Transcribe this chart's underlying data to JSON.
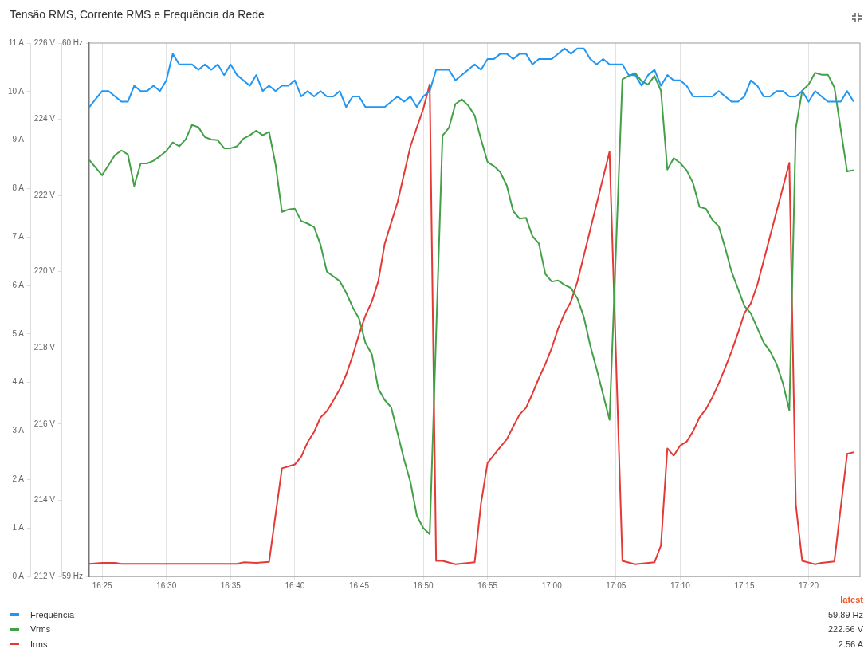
{
  "chart_data": {
    "type": "line",
    "title": "Tensão RMS, Corrente RMS e Frequência da Rede",
    "xlim": [
      16.4,
      17.4
    ],
    "xticks": [
      {
        "value": 16.4167,
        "label": "16:25"
      },
      {
        "value": 16.5,
        "label": "16:30"
      },
      {
        "value": 16.5833,
        "label": "16:35"
      },
      {
        "value": 16.6667,
        "label": "16:40"
      },
      {
        "value": 16.75,
        "label": "16:45"
      },
      {
        "value": 16.8333,
        "label": "16:50"
      },
      {
        "value": 16.9167,
        "label": "16:55"
      },
      {
        "value": 17.0,
        "label": "17:00"
      },
      {
        "value": 17.0833,
        "label": "17:05"
      },
      {
        "value": 17.1667,
        "label": "17:10"
      },
      {
        "value": 17.25,
        "label": "17:15"
      },
      {
        "value": 17.3333,
        "label": "17:20"
      }
    ],
    "ylim": [
      0,
      11
    ],
    "yticks": [
      {
        "value": 0,
        "label": "0 A"
      },
      {
        "value": 1,
        "label": "1 A"
      },
      {
        "value": 2,
        "label": "2 A"
      },
      {
        "value": 3,
        "label": "3 A"
      },
      {
        "value": 4,
        "label": "4 A"
      },
      {
        "value": 5,
        "label": "5 A"
      },
      {
        "value": 6,
        "label": "6 A"
      },
      {
        "value": 7,
        "label": "7 A"
      },
      {
        "value": 8,
        "label": "8 A"
      },
      {
        "value": 9,
        "label": "9 A"
      },
      {
        "value": 10,
        "label": "10 A"
      },
      {
        "value": 11,
        "label": "11 A"
      }
    ],
    "y2lim": [
      212,
      226
    ],
    "y2ticks": [
      {
        "value": 212,
        "label": "212 V"
      },
      {
        "value": 214,
        "label": "214 V"
      },
      {
        "value": 216,
        "label": "216 V"
      },
      {
        "value": 218,
        "label": "218 V"
      },
      {
        "value": 220,
        "label": "220 V"
      },
      {
        "value": 222,
        "label": "222 V"
      },
      {
        "value": 224,
        "label": "224 V"
      },
      {
        "value": 226,
        "label": "226 V"
      }
    ],
    "y3lim": [
      59,
      60
    ],
    "y3ticks": [
      {
        "value": 59,
        "label": "59 Hz"
      },
      {
        "value": 60,
        "label": "60 Hz"
      }
    ],
    "grid": "x",
    "legend": "bottom",
    "annotations": [
      "latest",
      "59.89 Hz",
      "222.66 V",
      "2.56 A"
    ],
    "series": [
      {
        "name": "Frequência",
        "color": "#2196f3",
        "axis": "y3",
        "x": [
          16.4,
          16.4167,
          16.425,
          16.4417,
          16.45,
          16.4583,
          16.4667,
          16.475,
          16.4833,
          16.4917,
          16.5,
          16.5083,
          16.5167,
          16.5333,
          16.5417,
          16.55,
          16.5583,
          16.5667,
          16.575,
          16.5833,
          16.5917,
          16.6083,
          16.6167,
          16.625,
          16.6333,
          16.6417,
          16.65,
          16.6583,
          16.6667,
          16.675,
          16.6833,
          16.6917,
          16.7,
          16.7083,
          16.7167,
          16.725,
          16.7333,
          16.7417,
          16.75,
          16.7583,
          16.7833,
          16.8,
          16.8083,
          16.8167,
          16.825,
          16.8333,
          16.8417,
          16.85,
          16.8667,
          16.875,
          16.9,
          16.9083,
          16.9167,
          16.925,
          16.9333,
          16.9417,
          16.95,
          16.9583,
          16.9667,
          16.975,
          16.9833,
          17.0,
          17.0167,
          17.025,
          17.0333,
          17.0417,
          17.05,
          17.0583,
          17.0667,
          17.075,
          17.0917,
          17.1,
          17.1083,
          17.1167,
          17.125,
          17.1333,
          17.1417,
          17.15,
          17.1583,
          17.1667,
          17.175,
          17.1833,
          17.2083,
          17.2167,
          17.2333,
          17.2417,
          17.25,
          17.2583,
          17.2667,
          17.275,
          17.2833,
          17.2917,
          17.3,
          17.3083,
          17.3167,
          17.325,
          17.3333,
          17.3417,
          17.3583,
          17.375,
          17.3833,
          17.3917
        ],
        "values": [
          59.88,
          59.91,
          59.91,
          59.89,
          59.89,
          59.92,
          59.91,
          59.91,
          59.92,
          59.91,
          59.93,
          59.98,
          59.96,
          59.96,
          59.95,
          59.96,
          59.95,
          59.96,
          59.94,
          59.96,
          59.94,
          59.92,
          59.94,
          59.91,
          59.92,
          59.91,
          59.92,
          59.92,
          59.93,
          59.9,
          59.91,
          59.9,
          59.91,
          59.9,
          59.9,
          59.91,
          59.88,
          59.9,
          59.9,
          59.88,
          59.88,
          59.9,
          59.89,
          59.9,
          59.88,
          59.9,
          59.91,
          59.95,
          59.95,
          59.93,
          59.96,
          59.95,
          59.97,
          59.97,
          59.98,
          59.98,
          59.97,
          59.98,
          59.98,
          59.96,
          59.97,
          59.97,
          59.99,
          59.98,
          59.99,
          59.99,
          59.97,
          59.96,
          59.97,
          59.96,
          59.96,
          59.94,
          59.94,
          59.92,
          59.94,
          59.95,
          59.92,
          59.94,
          59.93,
          59.93,
          59.92,
          59.9,
          59.9,
          59.91,
          59.89,
          59.89,
          59.9,
          59.93,
          59.92,
          59.9,
          59.9,
          59.91,
          59.91,
          59.9,
          59.9,
          59.91,
          59.89,
          59.91,
          59.89,
          59.89,
          59.91,
          59.89
        ]
      },
      {
        "name": "Vrms",
        "color": "#43a047",
        "axis": "y2",
        "x": [
          16.4,
          16.4167,
          16.4333,
          16.4417,
          16.45,
          16.4583,
          16.4667,
          16.475,
          16.4833,
          16.4917,
          16.5,
          16.5083,
          16.5167,
          16.525,
          16.5333,
          16.5417,
          16.55,
          16.5583,
          16.5667,
          16.575,
          16.5833,
          16.5917,
          16.6,
          16.6083,
          16.6167,
          16.625,
          16.6333,
          16.6417,
          16.65,
          16.6583,
          16.6667,
          16.675,
          16.6833,
          16.6917,
          16.7,
          16.7083,
          16.725,
          16.7333,
          16.7417,
          16.75,
          16.7583,
          16.7667,
          16.775,
          16.7833,
          16.7917,
          16.8,
          16.8083,
          16.8167,
          16.825,
          16.8333,
          16.8417,
          16.8583,
          16.8667,
          16.875,
          16.8833,
          16.8917,
          16.9,
          16.9083,
          16.9167,
          16.925,
          16.9333,
          16.9417,
          16.95,
          16.9583,
          16.9667,
          16.975,
          16.9833,
          16.9917,
          17.0,
          17.0083,
          17.0167,
          17.025,
          17.0333,
          17.0417,
          17.05,
          17.0583,
          17.0667,
          17.075,
          17.0917,
          17.1,
          17.1083,
          17.1167,
          17.125,
          17.1333,
          17.1417,
          17.15,
          17.1583,
          17.1667,
          17.175,
          17.1833,
          17.1917,
          17.2,
          17.2083,
          17.2167,
          17.225,
          17.2333,
          17.25,
          17.2583,
          17.275,
          17.2833,
          17.2917,
          17.3,
          17.3083,
          17.3167,
          17.325,
          17.3333,
          17.3417,
          17.35,
          17.3583,
          17.3667,
          17.3833,
          17.3917
        ],
        "values": [
          222.93,
          222.53,
          223.06,
          223.18,
          223.08,
          222.25,
          222.84,
          222.84,
          222.91,
          223.03,
          223.17,
          223.39,
          223.29,
          223.47,
          223.85,
          223.79,
          223.53,
          223.47,
          223.45,
          223.24,
          223.24,
          223.29,
          223.49,
          223.58,
          223.7,
          223.58,
          223.67,
          222.81,
          221.57,
          221.63,
          221.65,
          221.33,
          221.26,
          221.17,
          220.71,
          220.0,
          219.75,
          219.45,
          219.07,
          218.77,
          218.13,
          217.83,
          216.93,
          216.63,
          216.44,
          215.76,
          215.08,
          214.48,
          213.59,
          213.27,
          213.11,
          223.57,
          223.78,
          224.4,
          224.52,
          224.36,
          224.1,
          223.47,
          222.88,
          222.77,
          222.61,
          222.26,
          221.59,
          221.39,
          221.41,
          220.93,
          220.74,
          219.94,
          219.74,
          219.77,
          219.65,
          219.57,
          219.3,
          218.81,
          218.06,
          217.44,
          216.77,
          216.11,
          225.05,
          225.14,
          225.21,
          225.0,
          224.91,
          225.14,
          224.75,
          222.68,
          222.98,
          222.85,
          222.66,
          222.33,
          221.7,
          221.65,
          221.36,
          221.19,
          220.63,
          220.0,
          219.1,
          218.91,
          218.14,
          217.91,
          217.58,
          217.07,
          216.36,
          223.77,
          224.75,
          224.91,
          225.22,
          225.17,
          225.17,
          224.84,
          222.63,
          222.66
        ]
      },
      {
        "name": "Irms",
        "color": "#e53935",
        "axis": "y",
        "x": [
          16.4,
          16.4167,
          16.4333,
          16.4417,
          16.5917,
          16.6,
          16.6167,
          16.6333,
          16.65,
          16.6583,
          16.6667,
          16.675,
          16.6833,
          16.6917,
          16.7,
          16.7083,
          16.7167,
          16.725,
          16.7333,
          16.7417,
          16.75,
          16.7583,
          16.7667,
          16.775,
          16.7833,
          16.8,
          16.8167,
          16.825,
          16.8333,
          16.8417,
          16.85,
          16.8583,
          16.875,
          16.9,
          16.9083,
          16.9167,
          16.9333,
          16.9417,
          16.95,
          16.9583,
          16.9667,
          16.975,
          16.9833,
          16.9917,
          17.0,
          17.0083,
          17.0167,
          17.025,
          17.0333,
          17.075,
          17.0917,
          17.1083,
          17.1333,
          17.1417,
          17.15,
          17.1583,
          17.1667,
          17.175,
          17.1833,
          17.1917,
          17.2,
          17.2083,
          17.2167,
          17.225,
          17.2333,
          17.2417,
          17.25,
          17.2583,
          17.2667,
          17.3083,
          17.3167,
          17.325,
          17.3417,
          17.35,
          17.3667,
          17.3833,
          17.3917
        ],
        "values": [
          0.26,
          0.28,
          0.28,
          0.26,
          0.26,
          0.29,
          0.28,
          0.3,
          2.23,
          2.27,
          2.31,
          2.47,
          2.77,
          2.98,
          3.28,
          3.41,
          3.63,
          3.86,
          4.16,
          4.55,
          4.99,
          5.38,
          5.67,
          6.09,
          6.86,
          7.72,
          8.87,
          9.26,
          9.64,
          10.15,
          0.32,
          0.32,
          0.25,
          0.29,
          1.51,
          2.34,
          2.67,
          2.83,
          3.09,
          3.34,
          3.48,
          3.77,
          4.09,
          4.38,
          4.71,
          5.11,
          5.43,
          5.67,
          6.08,
          8.76,
          0.32,
          0.25,
          0.29,
          0.64,
          2.64,
          2.49,
          2.7,
          2.78,
          2.99,
          3.28,
          3.45,
          3.69,
          3.98,
          4.3,
          4.64,
          5.02,
          5.43,
          5.63,
          6.01,
          8.53,
          1.48,
          0.32,
          0.25,
          0.28,
          0.31,
          2.53,
          2.56
        ]
      }
    ]
  }
}
